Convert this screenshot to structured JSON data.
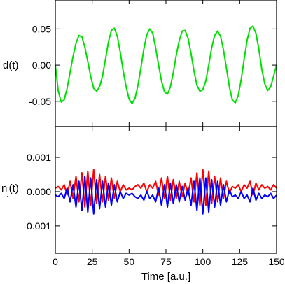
{
  "chart_data": [
    {
      "type": "line",
      "panel": "top",
      "ylabel": "d(t)",
      "xlim": [
        0,
        150
      ],
      "ylim": [
        -0.085,
        0.09
      ],
      "yticks": [
        0.05,
        0.0,
        -0.05
      ],
      "ytick_labels": [
        "0.05",
        "0.00",
        "-0.05"
      ],
      "grid": false,
      "series": [
        {
          "color": "#00e000",
          "x": [
            0,
            2,
            4,
            6,
            8,
            10,
            12,
            14,
            16,
            18,
            20,
            22,
            24,
            26,
            28,
            30,
            32,
            34,
            36,
            38,
            40,
            42,
            44,
            46,
            48,
            50,
            52,
            54,
            56,
            58,
            60,
            62,
            64,
            66,
            68,
            70,
            72,
            74,
            76,
            78,
            80,
            82,
            84,
            86,
            88,
            90,
            92,
            94,
            96,
            98,
            100,
            102,
            104,
            106,
            108,
            110,
            112,
            114,
            116,
            118,
            120,
            122,
            124,
            126,
            128,
            130,
            132,
            134,
            136,
            138,
            140,
            142,
            144,
            146,
            148,
            150
          ],
          "y": [
            0.0,
            -0.036,
            -0.051,
            -0.048,
            -0.032,
            -0.01,
            0.012,
            0.03,
            0.041,
            0.039,
            0.025,
            0.005,
            -0.016,
            -0.032,
            -0.036,
            -0.03,
            -0.015,
            0.008,
            0.032,
            0.048,
            0.051,
            0.04,
            0.018,
            -0.008,
            -0.03,
            -0.047,
            -0.053,
            -0.046,
            -0.028,
            -0.004,
            0.022,
            0.042,
            0.05,
            0.044,
            0.024,
            0.0,
            -0.022,
            -0.037,
            -0.04,
            -0.03,
            -0.01,
            0.014,
            0.034,
            0.047,
            0.048,
            0.037,
            0.016,
            -0.008,
            -0.028,
            -0.036,
            -0.034,
            -0.022,
            0.0,
            0.024,
            0.041,
            0.047,
            0.04,
            0.021,
            -0.004,
            -0.03,
            -0.048,
            -0.052,
            -0.042,
            -0.02,
            0.008,
            0.034,
            0.051,
            0.054,
            0.044,
            0.022,
            -0.006,
            -0.026,
            -0.035,
            -0.03,
            -0.015,
            0.0
          ]
        }
      ]
    },
    {
      "type": "line",
      "panel": "bottom",
      "ylabel": "n",
      "ylabel_sub": "j",
      "ylabel_suffix": "(t)",
      "xlabel": "Time [a.u.]",
      "xlim": [
        0,
        150
      ],
      "ylim": [
        -0.0018,
        0.0019
      ],
      "xticks": [
        0,
        25,
        50,
        75,
        100,
        125,
        150
      ],
      "xtick_labels": [
        "0",
        "25",
        "50",
        "75",
        "100",
        "125",
        "150"
      ],
      "yticks": [
        0.001,
        0.0,
        -0.001
      ],
      "ytick_labels": [
        "0.001",
        "0.000",
        "-0.001"
      ],
      "grid": false,
      "series": [
        {
          "color": "#ff0000",
          "x": [
            0,
            2,
            4,
            6,
            8,
            10,
            12,
            14,
            16,
            18,
            20,
            22,
            24,
            26,
            28,
            30,
            32,
            34,
            36,
            38,
            40,
            42,
            44,
            46,
            48,
            50,
            52,
            54,
            56,
            58,
            60,
            62,
            64,
            66,
            68,
            70,
            72,
            74,
            76,
            78,
            80,
            82,
            84,
            86,
            88,
            90,
            92,
            94,
            96,
            98,
            100,
            102,
            104,
            106,
            108,
            110,
            112,
            114,
            116,
            118,
            120,
            122,
            124,
            126,
            128,
            130,
            132,
            134,
            136,
            138,
            140,
            142,
            144,
            146,
            148,
            150
          ],
          "y": [
            0.0001,
            0.00015,
            5e-05,
            0.0002,
            -0.0001,
            0.0003,
            -0.0002,
            0.00045,
            -0.0003,
            0.00055,
            -0.00045,
            0.0006,
            -0.0004,
            0.00065,
            -0.00035,
            0.0005,
            -0.0003,
            0.00045,
            -0.00025,
            0.0004,
            -0.0002,
            0.0003,
            0.0,
            0.0002,
            5e-05,
            0.0001,
            5e-05,
            0.00015,
            0.0002,
            0.0001,
            0.00025,
            0.0,
            0.0002,
            0.0001,
            0.0003,
            -0.0001,
            0.0004,
            -0.0002,
            0.00045,
            -0.00025,
            0.00035,
            -0.0002,
            0.0003,
            -0.00015,
            0.00025,
            -0.0001,
            0.0004,
            -0.0003,
            0.00055,
            -0.0004,
            0.00065,
            -0.0004,
            0.0006,
            -0.00035,
            0.00045,
            -0.0003,
            0.0004,
            -0.0002,
            0.0003,
            -5e-05,
            0.00015,
            0.0001,
            0.0002,
            0.0,
            0.0002,
            0.0001,
            0.0003,
            -0.0001,
            0.00025,
            5e-05,
            0.0002,
            0.0001,
            0.00015,
            5e-05,
            0.0002,
            0.0001
          ]
        },
        {
          "color": "#0000ff",
          "x": [
            0,
            2,
            4,
            6,
            8,
            10,
            12,
            14,
            16,
            18,
            20,
            22,
            24,
            26,
            28,
            30,
            32,
            34,
            36,
            38,
            40,
            42,
            44,
            46,
            48,
            50,
            52,
            54,
            56,
            58,
            60,
            62,
            64,
            66,
            68,
            70,
            72,
            74,
            76,
            78,
            80,
            82,
            84,
            86,
            88,
            90,
            92,
            94,
            96,
            98,
            100,
            102,
            104,
            106,
            108,
            110,
            112,
            114,
            116,
            118,
            120,
            122,
            124,
            126,
            128,
            130,
            132,
            134,
            136,
            138,
            140,
            142,
            144,
            146,
            148,
            150
          ],
          "y": [
            -0.0001,
            -0.00015,
            -5e-05,
            -0.0002,
            0.0001,
            -0.0003,
            0.0002,
            -0.00045,
            0.0003,
            -0.00055,
            0.00045,
            -0.0006,
            0.0004,
            -0.00065,
            0.00035,
            -0.0005,
            0.0003,
            -0.00045,
            0.00025,
            -0.0004,
            0.0002,
            -0.0003,
            0.0,
            -0.0002,
            -5e-05,
            -0.0001,
            -5e-05,
            -0.00015,
            -0.0002,
            -0.0001,
            -0.00025,
            0.0,
            -0.0002,
            -0.0001,
            -0.0003,
            0.0001,
            -0.0004,
            0.0002,
            -0.00045,
            0.00025,
            -0.00035,
            0.0002,
            -0.0003,
            0.00015,
            -0.00025,
            0.0001,
            -0.0004,
            0.0003,
            -0.00055,
            0.0004,
            -0.00065,
            0.0004,
            -0.0006,
            0.00035,
            -0.00045,
            0.0003,
            -0.0004,
            0.0002,
            -0.0003,
            5e-05,
            -0.00015,
            -0.0001,
            -0.0002,
            0.0,
            -0.0002,
            -0.0001,
            -0.0003,
            0.0001,
            -0.00025,
            -5e-05,
            -0.0002,
            -0.0001,
            -0.00015,
            -5e-05,
            -0.0002,
            -0.0001
          ]
        }
      ]
    }
  ]
}
